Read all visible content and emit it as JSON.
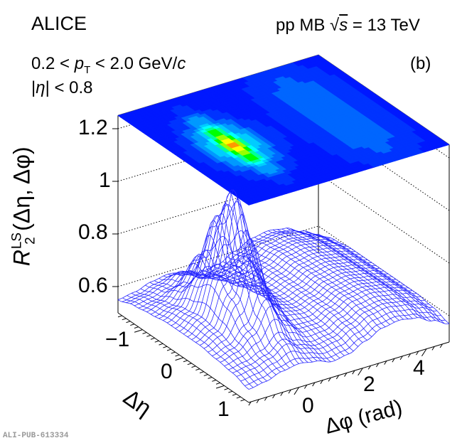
{
  "header": {
    "experiment": "ALICE",
    "system": "pp MB",
    "energy_sqrt": "s",
    "energy_value": "= 13 TeV",
    "pt_cut_prefix": "0.2 < ",
    "pt_symbol": "p",
    "pt_sub": "T",
    "pt_cut_suffix": " < 2.0 GeV/",
    "pt_unit_c": "c",
    "eta_cut_pre": "|",
    "eta_symbol": "η",
    "eta_cut_post": "| < 0.8",
    "panel": "(b)",
    "pub_id": "ALI-PUB-613334"
  },
  "chart_data": {
    "type": "surface",
    "subtype": "lego-surface with projected contour map on top",
    "zlabel": {
      "main": "R",
      "sup": "LS",
      "sub": "2",
      "args": "(Δη, Δφ)"
    },
    "xlabel": "Δη",
    "ylabel": "Δφ (rad)",
    "x_ticks": [
      "−1",
      "0",
      "1"
    ],
    "x_tick_values": [
      -1,
      0,
      1
    ],
    "y_ticks": [
      "0",
      "2",
      "4"
    ],
    "y_tick_values": [
      0,
      2,
      4
    ],
    "z_ticks": [
      "0.6",
      "0.8",
      "1",
      "1.2"
    ],
    "z_tick_values": [
      0.6,
      0.8,
      1.0,
      1.2
    ],
    "xlim": [
      -1.6,
      1.6
    ],
    "ylim": [
      -1.571,
      4.712
    ],
    "zlim": [
      0.5,
      1.25
    ],
    "grid": "dotted on back walls",
    "eta": [
      -1.6,
      -1.2,
      -0.8,
      -0.4,
      0,
      0.4,
      0.8,
      1.2,
      1.6
    ],
    "phi": [
      -1.57,
      -1.05,
      -0.52,
      0,
      0.52,
      1.05,
      1.57,
      2.09,
      2.62,
      3.14,
      3.67,
      4.19,
      4.71
    ],
    "z": [
      [
        0.55,
        0.56,
        0.58,
        0.59,
        0.58,
        0.56,
        0.57,
        0.6,
        0.63,
        0.64,
        0.63,
        0.6,
        0.57
      ],
      [
        0.57,
        0.58,
        0.6,
        0.64,
        0.6,
        0.58,
        0.59,
        0.62,
        0.65,
        0.66,
        0.65,
        0.62,
        0.59
      ],
      [
        0.58,
        0.6,
        0.65,
        0.75,
        0.65,
        0.6,
        0.6,
        0.63,
        0.66,
        0.67,
        0.66,
        0.63,
        0.6
      ],
      [
        0.59,
        0.62,
        0.73,
        0.94,
        0.73,
        0.62,
        0.61,
        0.63,
        0.66,
        0.67,
        0.66,
        0.63,
        0.6
      ],
      [
        0.59,
        0.63,
        0.79,
        1.08,
        0.79,
        0.63,
        0.61,
        0.63,
        0.66,
        0.67,
        0.66,
        0.63,
        0.6
      ],
      [
        0.59,
        0.62,
        0.73,
        0.94,
        0.73,
        0.62,
        0.61,
        0.63,
        0.66,
        0.67,
        0.66,
        0.63,
        0.6
      ],
      [
        0.58,
        0.6,
        0.65,
        0.75,
        0.65,
        0.6,
        0.6,
        0.63,
        0.66,
        0.67,
        0.66,
        0.63,
        0.6
      ],
      [
        0.57,
        0.58,
        0.6,
        0.64,
        0.6,
        0.58,
        0.59,
        0.62,
        0.65,
        0.66,
        0.65,
        0.62,
        0.59
      ],
      [
        0.55,
        0.56,
        0.58,
        0.59,
        0.58,
        0.56,
        0.57,
        0.6,
        0.63,
        0.64,
        0.63,
        0.6,
        0.57
      ]
    ],
    "colors": {
      "mesh": "#2626ff",
      "palette": [
        "#0018ff",
        "#0033ff",
        "#0066ff",
        "#0099ff",
        "#00ccff",
        "#00ffff",
        "#00ff99",
        "#00ff00",
        "#99ff00",
        "#ffff00",
        "#ff9900"
      ]
    }
  }
}
